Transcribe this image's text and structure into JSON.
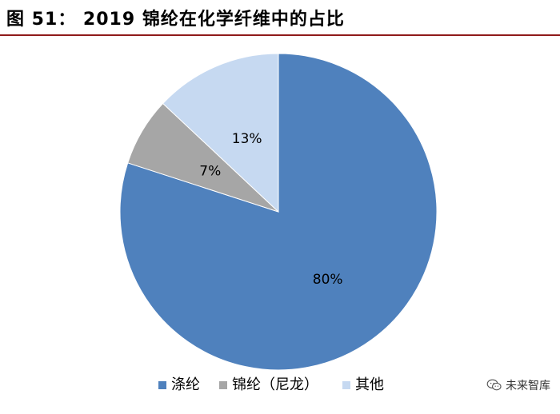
{
  "figure": {
    "title": "图 51： 2019 锦纶在化学纤维中的占比"
  },
  "watermark": {
    "text": "未来智库",
    "icon": "wechat-icon"
  },
  "chart_data": {
    "type": "pie",
    "title": "",
    "slices": [
      {
        "name": "涤纶",
        "value": 80,
        "label": "80%",
        "color": "#4f81bd"
      },
      {
        "name": "锦纶（尼龙）",
        "value": 7,
        "label": "7%",
        "color": "#a6a6a6"
      },
      {
        "name": "其他",
        "value": 13,
        "label": "13%",
        "color": "#c6d9f1"
      }
    ],
    "legend_position": "bottom",
    "start": "top",
    "direction": "clockwise"
  }
}
